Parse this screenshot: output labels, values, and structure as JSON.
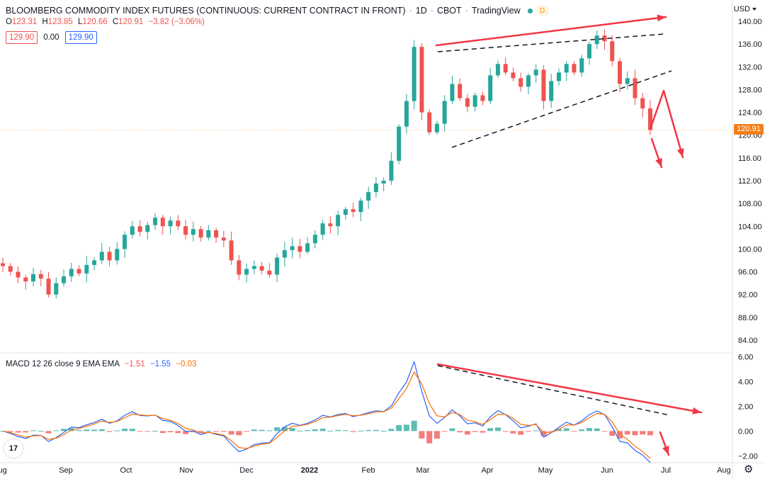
{
  "header": {
    "symbol_title": "BLOOMBERG COMMODITY INDEX FUTURES (CONTINUOUS: CURRENT CONTRACT IN FRONT)",
    "interval": "1D",
    "exchange": "CBOT",
    "source": "TradingView",
    "status_badge": "D"
  },
  "ohlc": {
    "o_label": "O",
    "o": "123.31",
    "h_label": "H",
    "h": "123.85",
    "l_label": "L",
    "l": "120.66",
    "c_label": "C",
    "c": "120.91",
    "change": "−3.82 (−3.06%)"
  },
  "boxes": {
    "bid": "129.90",
    "spread": "0.00",
    "ask": "129.90"
  },
  "macd": {
    "label": "MACD 12 26 close 9 EMA EMA",
    "macd": "−1.51",
    "signal": "−1.55",
    "hist": "−0.03"
  },
  "currency": "USD",
  "last_price": "120.91",
  "colors": {
    "up": "#26a69a",
    "down": "#ef5350",
    "macd_line": "#2962ff",
    "signal_line": "#ff6d00",
    "annotation": "#f23645",
    "price_tag": "#f57f17"
  },
  "icons": {
    "logo": "tv-logo-icon",
    "settings": "gear-icon"
  },
  "tv_logo_text": "17",
  "chart_data": {
    "type": "candlestick",
    "price_axis": {
      "ticks": [
        "140.00",
        "136.00",
        "132.00",
        "128.00",
        "124.00",
        "120.00",
        "116.00",
        "112.00",
        "108.00",
        "104.00",
        "100.00",
        "96.00",
        "92.00",
        "88.00",
        "84.00"
      ],
      "range": [
        82,
        142
      ]
    },
    "macd_axis": {
      "ticks": [
        "6.00",
        "4.00",
        "2.00",
        "0.00",
        "−2.00"
      ],
      "range": [
        -2.5,
        6.2
      ]
    },
    "time_axis": [
      "Aug",
      "Sep",
      "Oct",
      "Nov",
      "Dec",
      "2022",
      "Feb",
      "Mar",
      "Apr",
      "May",
      "Jun",
      "Jul",
      "Aug"
    ],
    "close_points": [
      [
        "Aug",
        97.0
      ],
      [
        "Aug",
        96.0
      ],
      [
        "Aug",
        95.0
      ],
      [
        "Aug",
        94.3
      ],
      [
        "Aug",
        95.6
      ],
      [
        "Aug",
        94.8
      ],
      [
        "Sep",
        92.0
      ],
      [
        "Sep",
        94.0
      ],
      [
        "Sep",
        95.2
      ],
      [
        "Sep",
        96.5
      ],
      [
        "Sep",
        95.7
      ],
      [
        "Sep",
        97.2
      ],
      [
        "Sep",
        98.0
      ],
      [
        "Sep",
        99.5
      ],
      [
        "Sep",
        98.0
      ],
      [
        "Sep",
        100.0
      ],
      [
        "Sep",
        102.5
      ],
      [
        "Oct",
        104.0
      ],
      [
        "Oct",
        103.0
      ],
      [
        "Oct",
        104.2
      ],
      [
        "Oct",
        105.5
      ],
      [
        "Oct",
        104.0
      ],
      [
        "Oct",
        105.0
      ],
      [
        "Nov",
        104.0
      ],
      [
        "Nov",
        102.5
      ],
      [
        "Nov",
        103.5
      ],
      [
        "Nov",
        102.0
      ],
      [
        "Nov",
        103.3
      ],
      [
        "Nov",
        102.0
      ],
      [
        "Nov",
        101.5
      ],
      [
        "Nov",
        98.0
      ],
      [
        "Dec",
        95.5
      ],
      [
        "Dec",
        96.5
      ],
      [
        "Dec",
        97.0
      ],
      [
        "Dec",
        96.2
      ],
      [
        "Dec",
        95.5
      ],
      [
        "Dec",
        98.5
      ],
      [
        "Dec",
        99.8
      ],
      [
        "Dec",
        100.5
      ],
      [
        "2022",
        99.5
      ],
      [
        "2022",
        101.0
      ],
      [
        "2022",
        102.5
      ],
      [
        "2022",
        104.5
      ],
      [
        "2022",
        104.0
      ],
      [
        "2022",
        106.0
      ],
      [
        "Feb",
        107.0
      ],
      [
        "Feb",
        106.5
      ],
      [
        "Feb",
        108.5
      ],
      [
        "Feb",
        110.0
      ],
      [
        "Feb",
        111.5
      ],
      [
        "Feb",
        112.0
      ],
      [
        "Mar",
        115.5
      ],
      [
        "Mar",
        121.5
      ],
      [
        "Mar",
        126.0
      ],
      [
        "Mar",
        135.5
      ],
      [
        "Mar",
        124.0
      ],
      [
        "Mar",
        120.5
      ],
      [
        "Mar",
        122.0
      ],
      [
        "Mar",
        126.0
      ],
      [
        "Mar",
        129.0
      ],
      [
        "Apr",
        126.5
      ],
      [
        "Apr",
        125.0
      ],
      [
        "Apr",
        127.0
      ],
      [
        "Apr",
        126.0
      ],
      [
        "Apr",
        130.5
      ],
      [
        "Apr",
        132.5
      ],
      [
        "Apr",
        131.0
      ],
      [
        "Apr",
        130.0
      ],
      [
        "Apr",
        128.5
      ],
      [
        "May",
        130.5
      ],
      [
        "May",
        131.5
      ],
      [
        "May",
        126.0
      ],
      [
        "May",
        129.5
      ],
      [
        "May",
        131.0
      ],
      [
        "May",
        132.5
      ],
      [
        "May",
        131.0
      ],
      [
        "Jun",
        133.5
      ],
      [
        "Jun",
        136.0
      ],
      [
        "Jun",
        137.5
      ],
      [
        "Jun",
        136.5
      ],
      [
        "Jun",
        133.0
      ],
      [
        "Jun",
        129.0
      ],
      [
        "Jun",
        130.0
      ],
      [
        "Jun",
        126.5
      ],
      [
        "Jun",
        124.7
      ],
      [
        "Jun",
        120.9
      ]
    ],
    "annotations": [
      {
        "type": "trendline",
        "style": "dashed",
        "label": ""
      },
      {
        "type": "trendline",
        "style": "dashed",
        "label": ""
      },
      {
        "type": "trendline",
        "style": "solid-arrow",
        "label": ""
      }
    ]
  }
}
